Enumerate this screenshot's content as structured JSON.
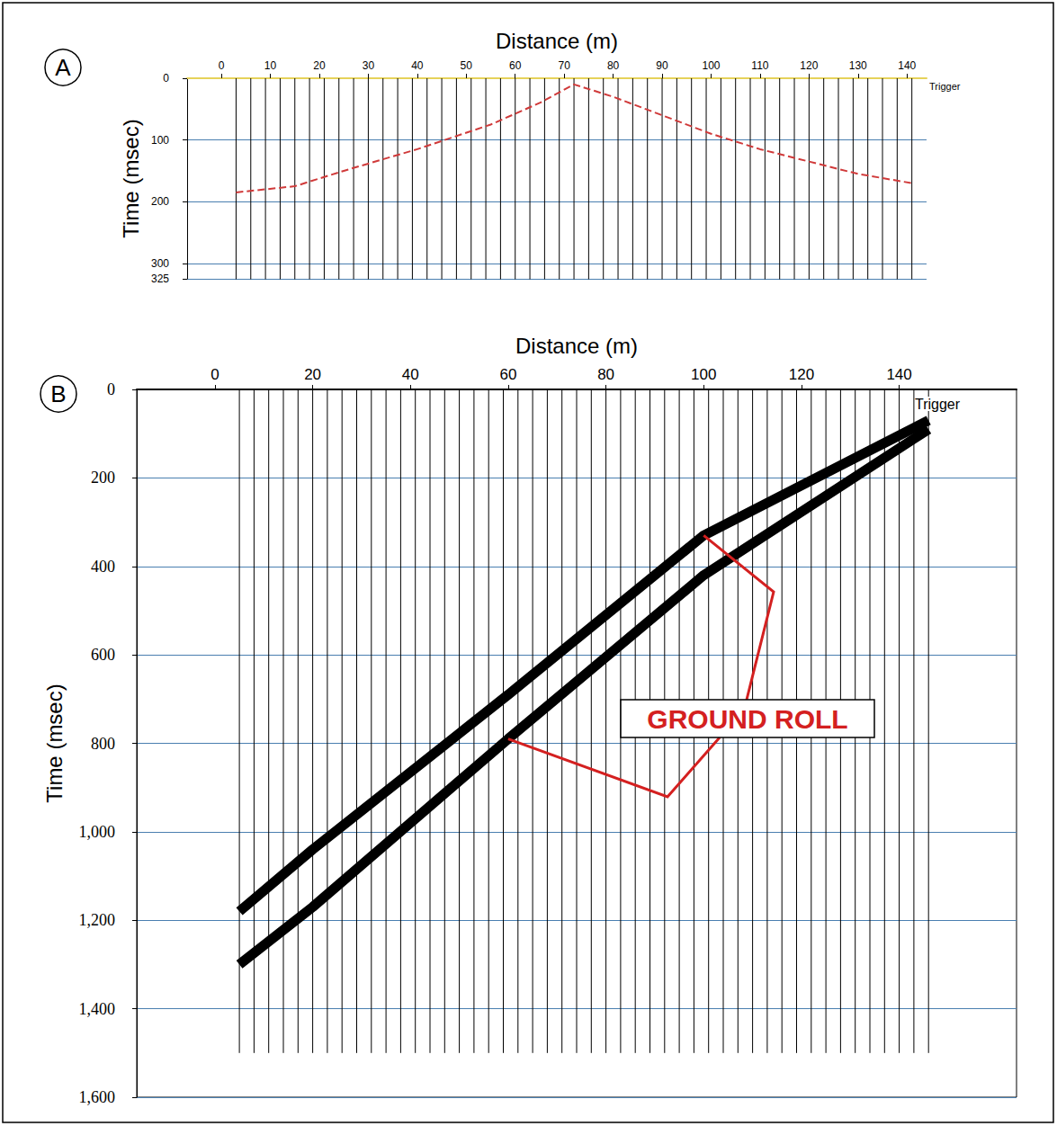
{
  "chart_data": [
    {
      "panel": "A",
      "type": "line",
      "xlabel": "Distance (m)",
      "ylabel": "Time (msec)",
      "xlim": [
        -7,
        144
      ],
      "xticks": [
        0,
        10,
        20,
        30,
        40,
        50,
        60,
        70,
        80,
        90,
        100,
        110,
        120,
        130,
        140
      ],
      "ylim": [
        0,
        325
      ],
      "yticks": [
        0,
        100,
        200,
        300
      ],
      "grid": true,
      "trigger_label": "Trigger",
      "trace_offsets": [
        3,
        6,
        9,
        12,
        15,
        18,
        21,
        24,
        27,
        30,
        33,
        36,
        39,
        42,
        45,
        48,
        51,
        54,
        57,
        60,
        63,
        66,
        69,
        72,
        75,
        78,
        81,
        84,
        87,
        90,
        93,
        96,
        99,
        102,
        105,
        108,
        111,
        114,
        117,
        120,
        123,
        126,
        129,
        132,
        135,
        138,
        141
      ],
      "record_start": 0,
      "record_end": 330,
      "series": [
        {
          "x": [
            3,
            15,
            25,
            40,
            55,
            65,
            72,
            80,
            90,
            100,
            110,
            120,
            130,
            141
          ],
          "values": [
            185,
            175,
            150,
            115,
            75,
            40,
            10,
            30,
            60,
            90,
            115,
            135,
            155,
            170
          ],
          "color": "#d03a3a",
          "line_style": "dashed"
        }
      ]
    },
    {
      "panel": "B",
      "type": "line",
      "xlabel": "Distance (m)",
      "ylabel": "Time (msec)",
      "xlim": [
        -16,
        164
      ],
      "xticks": [
        0,
        20,
        40,
        60,
        80,
        100,
        120,
        140
      ],
      "ylim": [
        0,
        1600
      ],
      "yticks": [
        0,
        200,
        400,
        600,
        800,
        1000,
        1200,
        1400,
        1600
      ],
      "grid": true,
      "trigger_label": "Trigger",
      "callout": "GROUND ROLL",
      "trace_offsets": [
        5,
        8,
        11,
        14,
        17,
        20,
        23,
        26,
        29,
        32,
        35,
        38,
        41,
        44,
        47,
        50,
        53,
        56,
        59,
        62,
        65,
        68,
        71,
        74,
        77,
        80,
        83,
        86,
        89,
        92,
        95,
        98,
        101,
        104,
        107,
        110,
        113,
        116,
        119,
        122,
        125,
        128,
        131,
        134,
        137,
        140,
        143,
        146
      ],
      "record_start": 0,
      "record_end": 1500,
      "series": [
        {
          "x": [
            146,
            100,
            60,
            20,
            5
          ],
          "values": [
            70,
            330,
            690,
            1040,
            1180
          ],
          "color": "#000000",
          "line_style": "solid"
        },
        {
          "x": [
            146,
            100,
            60,
            20,
            5
          ],
          "values": [
            90,
            420,
            790,
            1170,
            1300
          ],
          "color": "#000000",
          "line_style": "solid"
        }
      ]
    }
  ]
}
